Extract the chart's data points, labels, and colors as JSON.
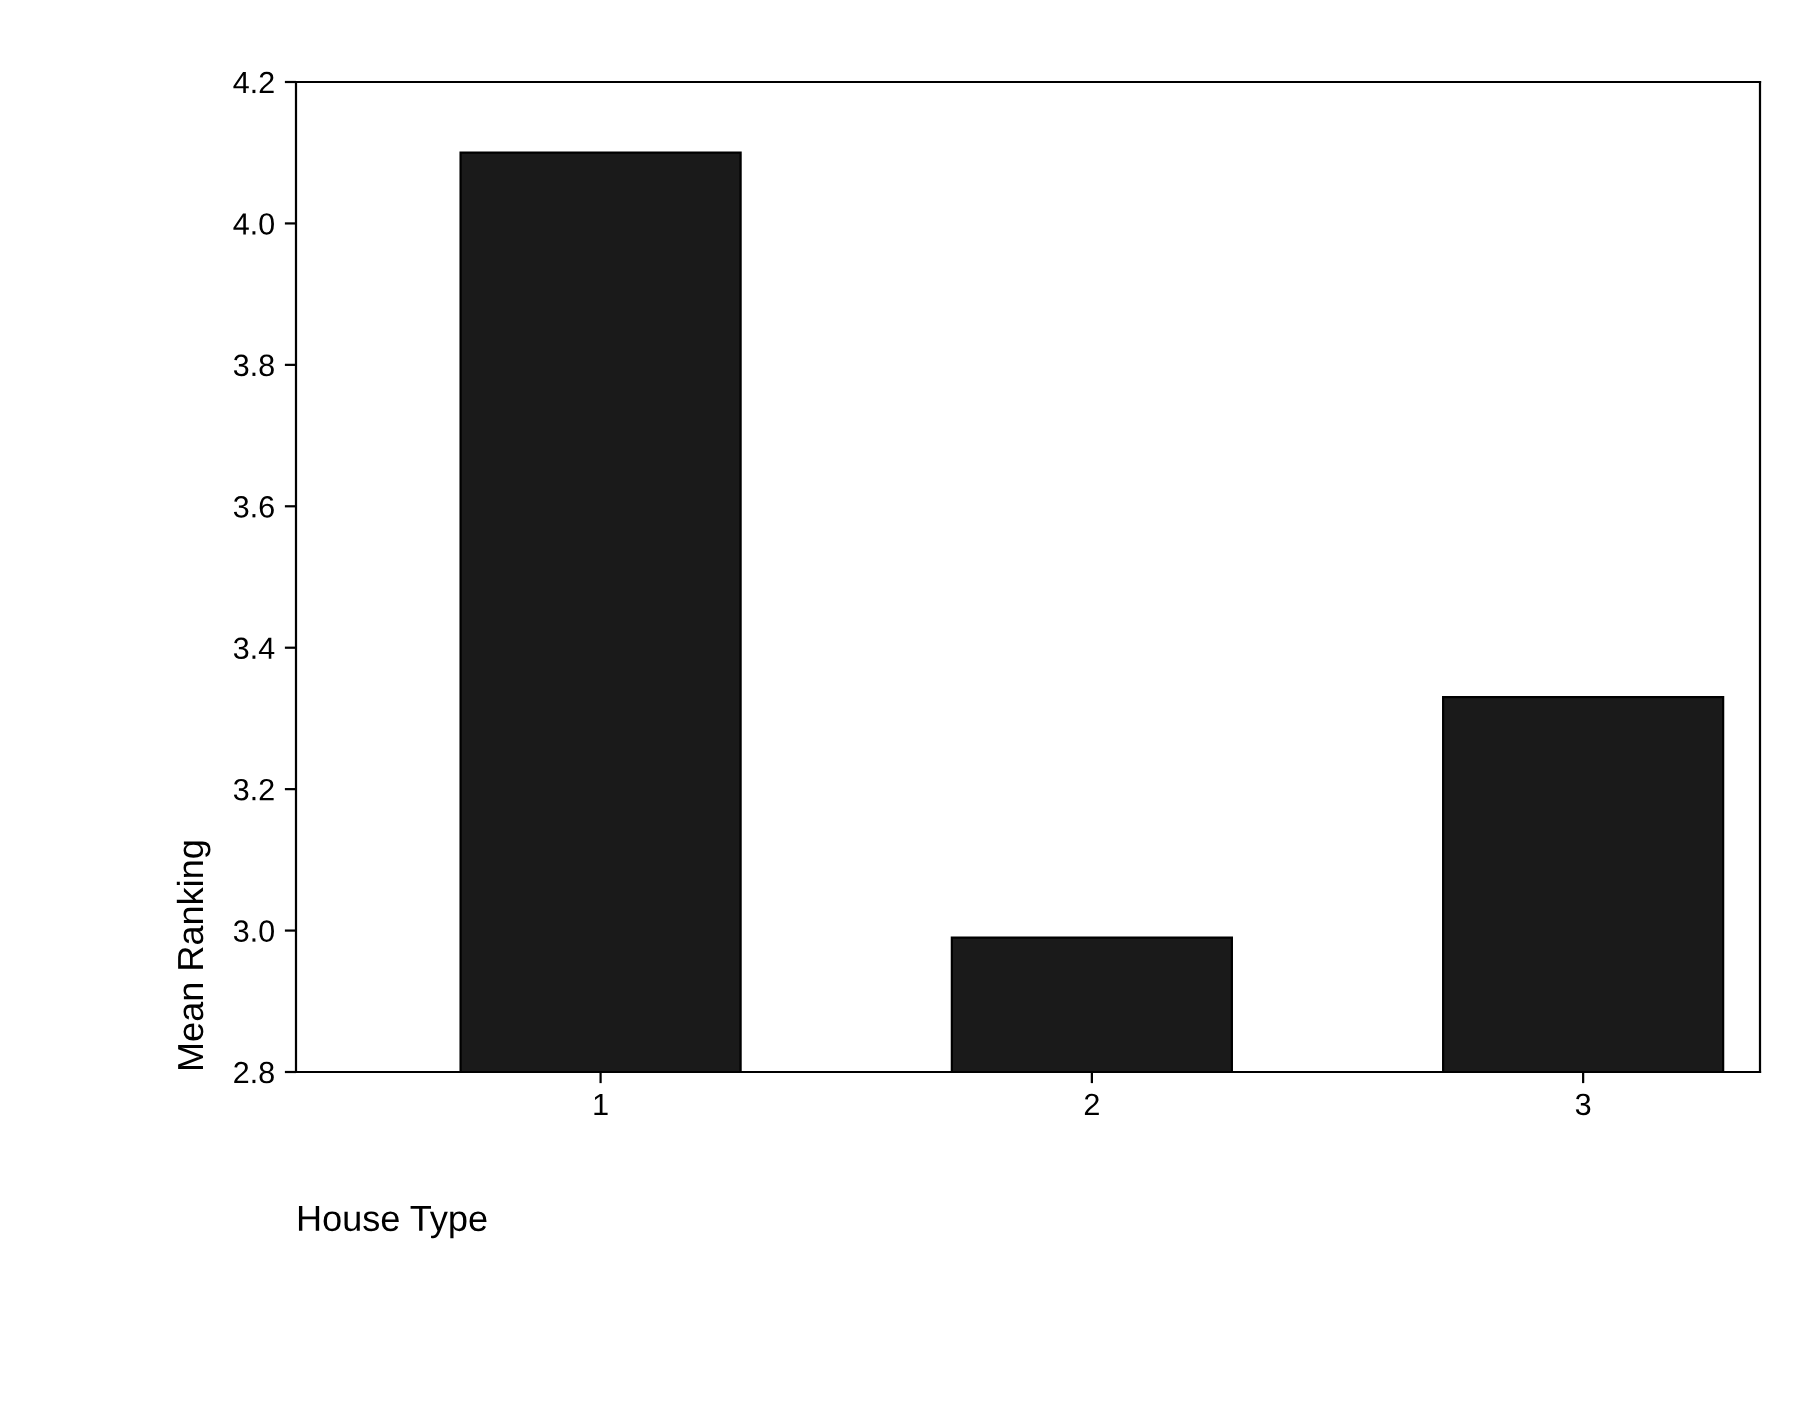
{
  "chart_data": {
    "type": "bar",
    "xlabel": "House Type",
    "ylabel": "Mean Ranking",
    "categories": [
      "1",
      "2",
      "3"
    ],
    "values": [
      4.1,
      2.99,
      3.33
    ],
    "color": "#1a1a1a",
    "ylim": [
      2.8,
      4.2
    ],
    "yticks": [
      {
        "value": 2.8,
        "label": "2.8"
      },
      {
        "value": 3.0,
        "label": "3.0"
      },
      {
        "value": 3.2,
        "label": "3.2"
      },
      {
        "value": 3.4,
        "label": "3.4"
      },
      {
        "value": 3.6,
        "label": "3.6"
      },
      {
        "value": 3.8,
        "label": "3.8"
      },
      {
        "value": 4.0,
        "label": "4.0"
      },
      {
        "value": 4.2,
        "label": "4.2"
      }
    ],
    "grid": false,
    "legend": false
  }
}
